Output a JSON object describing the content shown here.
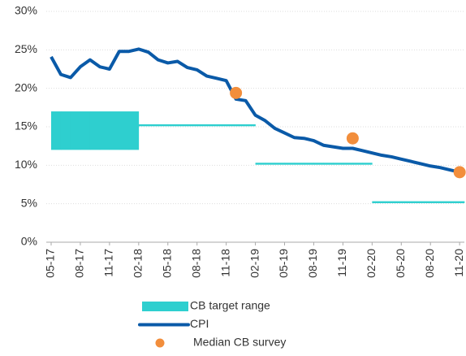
{
  "chart_data": {
    "type": "line",
    "categories": [
      "05-17",
      null,
      null,
      "08-17",
      null,
      null,
      "11-17",
      null,
      null,
      "02-18",
      null,
      null,
      "05-18",
      null,
      null,
      "08-18",
      null,
      null,
      "11-18",
      null,
      null,
      "02-19",
      null,
      null,
      "05-19",
      null,
      null,
      "08-19",
      null,
      null,
      "11-19",
      null,
      null,
      "02-20",
      null,
      null,
      "05-20",
      null,
      null,
      "08-20",
      null,
      null,
      "11-20"
    ],
    "series": [
      {
        "name": "CB target range",
        "type": "band",
        "color": "#2ecfcf",
        "low": [
          12,
          12,
          12,
          12,
          12,
          12,
          12,
          12,
          12,
          15.2,
          15.2,
          15.2,
          15.2,
          15.2,
          15.2,
          15.2,
          15.2,
          15.2,
          15.2,
          15.2,
          15.2,
          10.2,
          10.2,
          10.2,
          10.2,
          10.2,
          10.2,
          10.2,
          10.2,
          10.2,
          10.2,
          10.2,
          10.2,
          5.2,
          5.2,
          5.2,
          5.2,
          5.2,
          5.2,
          5.2,
          5.2,
          5.2,
          5.2
        ],
        "high": [
          17,
          17,
          17,
          17,
          17,
          17,
          17,
          17,
          17,
          15.2,
          15.2,
          15.2,
          15.2,
          15.2,
          15.2,
          15.2,
          15.2,
          15.2,
          15.2,
          15.2,
          15.2,
          10.2,
          10.2,
          10.2,
          10.2,
          10.2,
          10.2,
          10.2,
          10.2,
          10.2,
          10.2,
          10.2,
          10.2,
          5.2,
          5.2,
          5.2,
          5.2,
          5.2,
          5.2,
          5.2,
          5.2,
          5.2,
          5.2
        ]
      },
      {
        "name": "CPI",
        "type": "line",
        "color": "#0a5aa8",
        "values": [
          24.1,
          21.8,
          21.4,
          22.8,
          23.7,
          22.8,
          22.5,
          24.8,
          24.8,
          25.1,
          24.7,
          23.7,
          23.3,
          23.5,
          22.7,
          22.4,
          21.6,
          21.3,
          21.0,
          18.6,
          18.4,
          16.5,
          15.8,
          14.8,
          14.2,
          13.6,
          13.5,
          13.2,
          12.6,
          12.4,
          12.2,
          12.2,
          11.9,
          11.6,
          11.3,
          11.1,
          10.8,
          10.5,
          10.2,
          9.9,
          9.7,
          9.4,
          9.1
        ]
      },
      {
        "name": "Median CB survey",
        "type": "scatter",
        "color": "#f28e3c",
        "values": [
          null,
          null,
          null,
          null,
          null,
          null,
          null,
          null,
          null,
          null,
          null,
          null,
          null,
          null,
          null,
          null,
          null,
          null,
          null,
          19.4,
          null,
          null,
          null,
          null,
          null,
          null,
          null,
          null,
          null,
          null,
          null,
          13.5,
          null,
          null,
          null,
          null,
          null,
          null,
          null,
          null,
          null,
          null,
          9.1
        ]
      }
    ],
    "ylim": [
      0,
      30
    ],
    "yticks": [
      {
        "value": 0,
        "label": "0%"
      },
      {
        "value": 5,
        "label": "5%"
      },
      {
        "value": 10,
        "label": "10%"
      },
      {
        "value": 15,
        "label": "15%"
      },
      {
        "value": 20,
        "label": "20%"
      },
      {
        "value": 25,
        "label": "25%"
      },
      {
        "value": 30,
        "label": "30%"
      }
    ],
    "grid": true,
    "legend": "bottom"
  }
}
